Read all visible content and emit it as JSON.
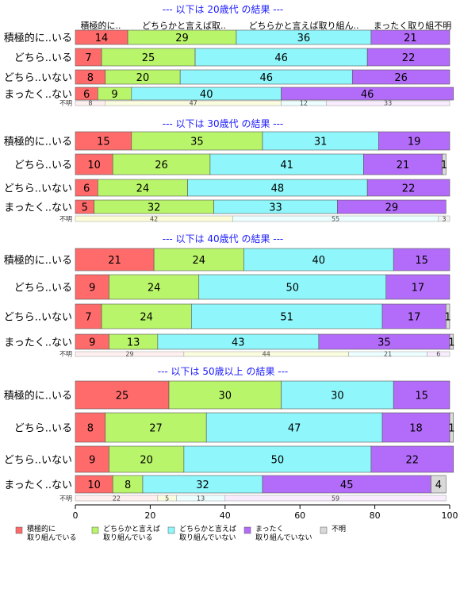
{
  "colors": {
    "c1": "#ff6b6b",
    "c2": "#b9f56a",
    "c3": "#8ff7fb",
    "c4": "#b36cf9",
    "unknown": "#d9d9d9",
    "title": "#1a1aff"
  },
  "chart_data": {
    "type": "bar",
    "orientation": "horizontal-stacked-100",
    "xlim": [
      0,
      100
    ],
    "x_ticks": [
      "0",
      "20",
      "40",
      "60",
      "80",
      "100"
    ],
    "column_headers": [
      "積極的に..",
      "どちらかと言えば取..",
      "どちらかと言えば取り組ん..",
      "まったく取り組不明"
    ],
    "legend": [
      {
        "line1": "積極的に",
        "line2": "取り組んでいる"
      },
      {
        "line1": "どちらかと言えば",
        "line2": "取り組んでいる"
      },
      {
        "line1": "どちらかと言えば",
        "line2": "取り組んでいない"
      },
      {
        "line1": "まったく",
        "line2": "取り組んでいない"
      },
      {
        "line1": "不明",
        "line2": ""
      }
    ],
    "panels": [
      {
        "title": "--- 以下は 20歳代 の結果 ---",
        "rows": [
          {
            "label": "積極的に..いる",
            "values": [
              14,
              29,
              36,
              21,
              0
            ]
          },
          {
            "label": "どちら..いる",
            "values": [
              7,
              25,
              46,
              22,
              0
            ]
          },
          {
            "label": "どちら..いない",
            "values": [
              8,
              20,
              46,
              26,
              0
            ]
          },
          {
            "label": "まったく..ない",
            "values": [
              6,
              9,
              40,
              46,
              0
            ]
          }
        ],
        "unknown_label": "不明",
        "unknown_values": [
          8,
          47,
          12,
          33
        ]
      },
      {
        "title": "--- 以下は 30歳代 の結果 ---",
        "rows": [
          {
            "label": "積極的に..いる",
            "values": [
              15,
              35,
              31,
              19,
              0
            ]
          },
          {
            "label": "どちら..いる",
            "values": [
              10,
              26,
              41,
              21,
              1
            ]
          },
          {
            "label": "どちら..いない",
            "values": [
              6,
              24,
              48,
              22,
              0
            ]
          },
          {
            "label": "まったく..ない",
            "values": [
              5,
              32,
              33,
              29,
              0
            ]
          }
        ],
        "unknown_label": "不明",
        "unknown_values": [
          42,
          55,
          3
        ]
      },
      {
        "title": "--- 以下は 40歳代 の結果 ---",
        "rows": [
          {
            "label": "積極的に..いる",
            "values": [
              21,
              24,
              40,
              15,
              0
            ]
          },
          {
            "label": "どちら..いる",
            "values": [
              9,
              24,
              50,
              17,
              0
            ]
          },
          {
            "label": "どちら..いない",
            "values": [
              7,
              24,
              51,
              17,
              1
            ]
          },
          {
            "label": "まったく..ない",
            "values": [
              9,
              13,
              43,
              35,
              1
            ]
          }
        ],
        "unknown_label": "不明",
        "unknown_values": [
          29,
          44,
          21,
          6
        ]
      },
      {
        "title": "--- 以下は 50歳以上 の結果 ---",
        "rows": [
          {
            "label": "積極的に..いる",
            "values": [
              25,
              30,
              30,
              15,
              0
            ]
          },
          {
            "label": "どちら..いる",
            "values": [
              8,
              27,
              47,
              18,
              1
            ]
          },
          {
            "label": "どちら..いない",
            "values": [
              9,
              20,
              50,
              22,
              0
            ]
          },
          {
            "label": "まったく..ない",
            "values": [
              10,
              8,
              32,
              45,
              4
            ]
          }
        ],
        "unknown_label": "不明",
        "unknown_values": [
          22,
          5,
          13,
          59
        ]
      }
    ]
  }
}
